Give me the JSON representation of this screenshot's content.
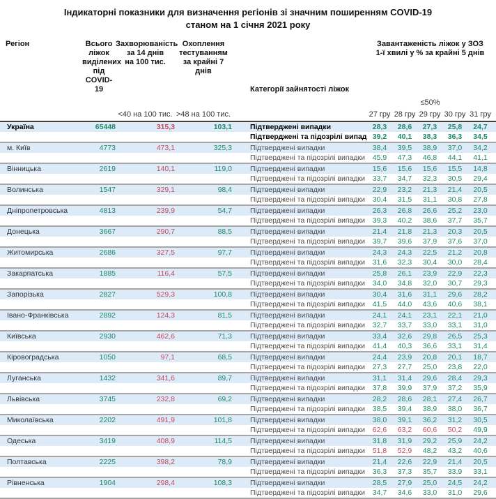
{
  "title": {
    "line1": "Індикаторні показники для визначення регіонів зі значним поширенням COVID-19",
    "line2": "станом на 1 січня 2021 року"
  },
  "header": {
    "region": "Регіон",
    "beds": "Всього ліжок\nвиділених\nпід COVID-19",
    "incidence": "Захворюваність\nза 14 днів\nна 100 тис.",
    "testing": "Охоплення\nтестуванням\nза крайні 7 днів",
    "category": "Категорії зайнятості ліжок",
    "load": "Завантаженість ліжок у ЗОЗ\n1-ї хвилі у % за крайні 5 днів",
    "incidence_threshold": "<40 на 100 тис.",
    "testing_threshold": ">48 на 100 тис.",
    "load_threshold": "≤50%",
    "dates": [
      "27 гру",
      "28 гру",
      "29 гру",
      "30 гру",
      "31 гру"
    ]
  },
  "category_labels": {
    "confirmed": "Підтверджені випадки",
    "suspected": "Підтверджені та підозрілі випадки"
  },
  "colors": {
    "good": "#1d8a68",
    "bad": "#c8495e",
    "row_highlight": "#dcebf7"
  },
  "regions": [
    {
      "name": "Україна",
      "bold": true,
      "beds": "65448",
      "incidence": "315,3",
      "testing": "103,1",
      "confirmed": [
        "28,3",
        "28,6",
        "27,3",
        "25,8",
        "24,7"
      ],
      "suspected": [
        "39,2",
        "40,1",
        "38,3",
        "36,3",
        "34,5"
      ],
      "suspected_red": [
        false,
        false,
        false,
        false,
        false
      ]
    },
    {
      "name": "м. Київ",
      "bold": false,
      "beds": "4773",
      "incidence": "473,1",
      "testing": "325,3",
      "confirmed": [
        "38,4",
        "39,5",
        "38,9",
        "37,0",
        "34,2"
      ],
      "suspected": [
        "45,9",
        "47,3",
        "46,8",
        "44,1",
        "41,1"
      ],
      "suspected_red": [
        false,
        false,
        false,
        false,
        false
      ]
    },
    {
      "name": "Вінницька",
      "bold": false,
      "beds": "2619",
      "incidence": "140,1",
      "testing": "119,0",
      "confirmed": [
        "15,6",
        "15,6",
        "15,6",
        "15,5",
        "14,8"
      ],
      "suspected": [
        "33,7",
        "34,7",
        "32,3",
        "30,5",
        "29,4"
      ],
      "suspected_red": [
        false,
        false,
        false,
        false,
        false
      ]
    },
    {
      "name": "Волинська",
      "bold": false,
      "beds": "1547",
      "incidence": "329,1",
      "testing": "98,4",
      "confirmed": [
        "22,9",
        "23,2",
        "21,3",
        "21,4",
        "20,5"
      ],
      "suspected": [
        "30,4",
        "31,5",
        "31,1",
        "30,8",
        "27,8"
      ],
      "suspected_red": [
        false,
        false,
        false,
        false,
        false
      ]
    },
    {
      "name": "Дніпропетровська",
      "bold": false,
      "beds": "4813",
      "incidence": "239,9",
      "testing": "54,7",
      "confirmed": [
        "26,3",
        "26,8",
        "26,6",
        "25,2",
        "23,0"
      ],
      "suspected": [
        "39,3",
        "40,2",
        "38,6",
        "37,7",
        "35,7"
      ],
      "suspected_red": [
        false,
        false,
        false,
        false,
        false
      ]
    },
    {
      "name": "Донецька",
      "bold": false,
      "beds": "3667",
      "incidence": "290,7",
      "testing": "88,5",
      "confirmed": [
        "21,4",
        "21,8",
        "21,3",
        "20,3",
        "20,5"
      ],
      "suspected": [
        "39,7",
        "39,6",
        "37,9",
        "37,6",
        "37,0"
      ],
      "suspected_red": [
        false,
        false,
        false,
        false,
        false
      ]
    },
    {
      "name": "Житомирська",
      "bold": false,
      "beds": "2686",
      "incidence": "327,5",
      "testing": "97,7",
      "confirmed": [
        "24,3",
        "24,3",
        "22,5",
        "21,2",
        "20,8"
      ],
      "suspected": [
        "31,6",
        "32,3",
        "30,4",
        "30,0",
        "28,4"
      ],
      "suspected_red": [
        false,
        false,
        false,
        false,
        false
      ]
    },
    {
      "name": "Закарпатська",
      "bold": false,
      "beds": "1885",
      "incidence": "116,4",
      "testing": "57,5",
      "confirmed": [
        "25,8",
        "26,1",
        "23,9",
        "22,9",
        "22,3"
      ],
      "suspected": [
        "34,0",
        "34,8",
        "32,0",
        "30,7",
        "29,3"
      ],
      "suspected_red": [
        false,
        false,
        false,
        false,
        false
      ]
    },
    {
      "name": "Запорізька",
      "bold": false,
      "beds": "2827",
      "incidence": "529,3",
      "testing": "100,8",
      "confirmed": [
        "30,4",
        "31,6",
        "31,1",
        "29,6",
        "28,2"
      ],
      "suspected": [
        "41,5",
        "44,0",
        "43,6",
        "40,6",
        "38,1"
      ],
      "suspected_red": [
        false,
        false,
        false,
        false,
        false
      ]
    },
    {
      "name": "Івано-Франківська",
      "bold": false,
      "beds": "2892",
      "incidence": "124,3",
      "testing": "81,5",
      "confirmed": [
        "24,1",
        "24,1",
        "23,1",
        "22,1",
        "21,0"
      ],
      "suspected": [
        "32,7",
        "33,7",
        "33,0",
        "33,1",
        "31,0"
      ],
      "suspected_red": [
        false,
        false,
        false,
        false,
        false
      ]
    },
    {
      "name": "Київська",
      "bold": false,
      "beds": "2930",
      "incidence": "462,6",
      "testing": "71,3",
      "confirmed": [
        "33,4",
        "32,6",
        "29,8",
        "26,5",
        "25,3"
      ],
      "suspected": [
        "41,4",
        "40,3",
        "36,6",
        "33,1",
        "31,4"
      ],
      "suspected_red": [
        false,
        false,
        false,
        false,
        false
      ]
    },
    {
      "name": "Кіровоградська",
      "bold": false,
      "beds": "1050",
      "incidence": "97,1",
      "testing": "68,5",
      "confirmed": [
        "24,4",
        "23,9",
        "20,8",
        "20,1",
        "18,7"
      ],
      "suspected": [
        "27,3",
        "27,7",
        "25,0",
        "23,8",
        "22,0"
      ],
      "suspected_red": [
        false,
        false,
        false,
        false,
        false
      ]
    },
    {
      "name": "Луганська",
      "bold": false,
      "beds": "1432",
      "incidence": "341,6",
      "testing": "89,7",
      "confirmed": [
        "31,1",
        "31,4",
        "29,6",
        "28,4",
        "29,3"
      ],
      "suspected": [
        "37,8",
        "39,9",
        "37,9",
        "37,2",
        "35,9"
      ],
      "suspected_red": [
        false,
        false,
        false,
        false,
        false
      ]
    },
    {
      "name": "Львівська",
      "bold": false,
      "beds": "3745",
      "incidence": "232,8",
      "testing": "69,2",
      "confirmed": [
        "28,2",
        "28,6",
        "28,1",
        "27,4",
        "26,7"
      ],
      "suspected": [
        "38,5",
        "39,4",
        "38,9",
        "38,0",
        "36,7"
      ],
      "suspected_red": [
        false,
        false,
        false,
        false,
        false
      ]
    },
    {
      "name": "Миколаївська",
      "bold": false,
      "beds": "2202",
      "incidence": "491,9",
      "testing": "101,8",
      "confirmed": [
        "38,0",
        "39,1",
        "36,2",
        "31,2",
        "30,5"
      ],
      "suspected": [
        "62,6",
        "63,2",
        "60,6",
        "50,2",
        "49,9"
      ],
      "suspected_red": [
        true,
        true,
        true,
        true,
        false
      ]
    },
    {
      "name": "Одеська",
      "bold": false,
      "beds": "3419",
      "incidence": "408,9",
      "testing": "114,5",
      "confirmed": [
        "31,8",
        "31,9",
        "29,2",
        "25,9",
        "24,2"
      ],
      "suspected": [
        "51,8",
        "52,9",
        "48,2",
        "43,2",
        "40,6"
      ],
      "suspected_red": [
        true,
        true,
        false,
        false,
        false
      ]
    },
    {
      "name": "Полтавська",
      "bold": false,
      "beds": "2225",
      "incidence": "398,2",
      "testing": "78,9",
      "confirmed": [
        "21,4",
        "22,6",
        "22,9",
        "21,4",
        "20,5"
      ],
      "suspected": [
        "36,3",
        "37,3",
        "35,7",
        "33,9",
        "33,1"
      ],
      "suspected_red": [
        false,
        false,
        false,
        false,
        false
      ]
    },
    {
      "name": "Рівненська",
      "bold": false,
      "beds": "1904",
      "incidence": "298,4",
      "testing": "108,3",
      "confirmed": [
        "28,5",
        "27,9",
        "25,0",
        "24,5",
        "24,2"
      ],
      "suspected": [
        "34,7",
        "34,6",
        "33,0",
        "31,0",
        "29,6"
      ],
      "suspected_red": [
        false,
        false,
        false,
        false,
        false
      ]
    }
  ],
  "chart_data": {
    "type": "table",
    "title": "Індикаторні показники для визначення регіонів зі значним поширенням COVID-19 станом на 1 січня 2021 року",
    "columns": [
      "Регіон",
      "Всього ліжок виділених під COVID-19",
      "Захворюваність за 14 днів на 100 тис. (<40 на 100 тис.)",
      "Охоплення тестуванням за крайні 7 днів (>48 на 100 тис.)",
      "Категорії зайнятості ліжок",
      "Завантаженість ліжок у ЗОЗ 1-ї хвилі у % за крайні 5 днів (≤50%): 27 гру",
      "28 гру",
      "29 гру",
      "30 гру",
      "31 гру"
    ],
    "rows": [
      [
        "Україна",
        65448,
        315.3,
        103.1,
        "Підтверджені випадки",
        28.3,
        28.6,
        27.3,
        25.8,
        24.7
      ],
      [
        "Україна",
        65448,
        315.3,
        103.1,
        "Підтверджені та підозрілі випадки",
        39.2,
        40.1,
        38.3,
        36.3,
        34.5
      ],
      [
        "м. Київ",
        4773,
        473.1,
        325.3,
        "Підтверджені випадки",
        38.4,
        39.5,
        38.9,
        37.0,
        34.2
      ],
      [
        "м. Київ",
        4773,
        473.1,
        325.3,
        "Підтверджені та підозрілі випадки",
        45.9,
        47.3,
        46.8,
        44.1,
        41.1
      ],
      [
        "Вінницька",
        2619,
        140.1,
        119.0,
        "Підтверджені випадки",
        15.6,
        15.6,
        15.6,
        15.5,
        14.8
      ],
      [
        "Вінницька",
        2619,
        140.1,
        119.0,
        "Підтверджені та підозрілі випадки",
        33.7,
        34.7,
        32.3,
        30.5,
        29.4
      ],
      [
        "Волинська",
        1547,
        329.1,
        98.4,
        "Підтверджені випадки",
        22.9,
        23.2,
        21.3,
        21.4,
        20.5
      ],
      [
        "Волинська",
        1547,
        329.1,
        98.4,
        "Підтверджені та підозрілі випадки",
        30.4,
        31.5,
        31.1,
        30.8,
        27.8
      ],
      [
        "Дніпропетровська",
        4813,
        239.9,
        54.7,
        "Підтверджені випадки",
        26.3,
        26.8,
        26.6,
        25.2,
        23.0
      ],
      [
        "Дніпропетровська",
        4813,
        239.9,
        54.7,
        "Підтверджені та підозрілі випадки",
        39.3,
        40.2,
        38.6,
        37.7,
        35.7
      ],
      [
        "Донецька",
        3667,
        290.7,
        88.5,
        "Підтверджені випадки",
        21.4,
        21.8,
        21.3,
        20.3,
        20.5
      ],
      [
        "Донецька",
        3667,
        290.7,
        88.5,
        "Підтверджені та підозрілі випадки",
        39.7,
        39.6,
        37.9,
        37.6,
        37.0
      ],
      [
        "Житомирська",
        2686,
        327.5,
        97.7,
        "Підтверджені випадки",
        24.3,
        24.3,
        22.5,
        21.2,
        20.8
      ],
      [
        "Житомирська",
        2686,
        327.5,
        97.7,
        "Підтверджені та підозрілі випадки",
        31.6,
        32.3,
        30.4,
        30.0,
        28.4
      ],
      [
        "Закарпатська",
        1885,
        116.4,
        57.5,
        "Підтверджені випадки",
        25.8,
        26.1,
        23.9,
        22.9,
        22.3
      ],
      [
        "Закарпатська",
        1885,
        116.4,
        57.5,
        "Підтверджені та підозрілі випадки",
        34.0,
        34.8,
        32.0,
        30.7,
        29.3
      ],
      [
        "Запорізька",
        2827,
        529.3,
        100.8,
        "Підтверджені випадки",
        30.4,
        31.6,
        31.1,
        29.6,
        28.2
      ],
      [
        "Запорізька",
        2827,
        529.3,
        100.8,
        "Підтверджені та підозрілі випадки",
        41.5,
        44.0,
        43.6,
        40.6,
        38.1
      ],
      [
        "Івано-Франківська",
        2892,
        124.3,
        81.5,
        "Підтверджені випадки",
        24.1,
        24.1,
        23.1,
        22.1,
        21.0
      ],
      [
        "Івано-Франківська",
        2892,
        124.3,
        81.5,
        "Підтверджені та підозрілі випадки",
        32.7,
        33.7,
        33.0,
        33.1,
        31.0
      ],
      [
        "Київська",
        2930,
        462.6,
        71.3,
        "Підтверджені випадки",
        33.4,
        32.6,
        29.8,
        26.5,
        25.3
      ],
      [
        "Київська",
        2930,
        462.6,
        71.3,
        "Підтверджені та підозрілі випадки",
        41.4,
        40.3,
        36.6,
        33.1,
        31.4
      ],
      [
        "Кіровоградська",
        1050,
        97.1,
        68.5,
        "Підтверджені випадки",
        24.4,
        23.9,
        20.8,
        20.1,
        18.7
      ],
      [
        "Кіровоградська",
        1050,
        97.1,
        68.5,
        "Підтверджені та підозрілі випадки",
        27.3,
        27.7,
        25.0,
        23.8,
        22.0
      ],
      [
        "Луганська",
        1432,
        341.6,
        89.7,
        "Підтверджені випадки",
        31.1,
        31.4,
        29.6,
        28.4,
        29.3
      ],
      [
        "Луганська",
        1432,
        341.6,
        89.7,
        "Підтверджені та підозрілі випадки",
        37.8,
        39.9,
        37.9,
        37.2,
        35.9
      ],
      [
        "Львівська",
        3745,
        232.8,
        69.2,
        "Підтверджені випадки",
        28.2,
        28.6,
        28.1,
        27.4,
        26.7
      ],
      [
        "Львівська",
        3745,
        232.8,
        69.2,
        "Підтверджені та підозрілі випадки",
        38.5,
        39.4,
        38.9,
        38.0,
        36.7
      ],
      [
        "Миколаївська",
        2202,
        491.9,
        101.8,
        "Підтверджені випадки",
        38.0,
        39.1,
        36.2,
        31.2,
        30.5
      ],
      [
        "Миколаївська",
        2202,
        491.9,
        101.8,
        "Підтверджені та підозрілі випадки",
        62.6,
        63.2,
        60.6,
        50.2,
        49.9
      ],
      [
        "Одеська",
        3419,
        408.9,
        114.5,
        "Підтверджені випадки",
        31.8,
        31.9,
        29.2,
        25.9,
        24.2
      ],
      [
        "Одеська",
        3419,
        408.9,
        114.5,
        "Підтверджені та підозрілі випадки",
        51.8,
        52.9,
        48.2,
        43.2,
        40.6
      ],
      [
        "Полтавська",
        2225,
        398.2,
        78.9,
        "Підтверджені випадки",
        21.4,
        22.6,
        22.9,
        21.4,
        20.5
      ],
      [
        "Полтавська",
        2225,
        398.2,
        78.9,
        "Підтверджені та підозрілі випадки",
        36.3,
        37.3,
        35.7,
        33.9,
        33.1
      ],
      [
        "Рівненська",
        1904,
        298.4,
        108.3,
        "Підтверджені випадки",
        28.5,
        27.9,
        25.0,
        24.5,
        24.2
      ],
      [
        "Рівненська",
        1904,
        298.4,
        108.3,
        "Підтверджені та підозрілі випадки",
        34.7,
        34.6,
        33.0,
        31.0,
        29.6
      ]
    ]
  }
}
